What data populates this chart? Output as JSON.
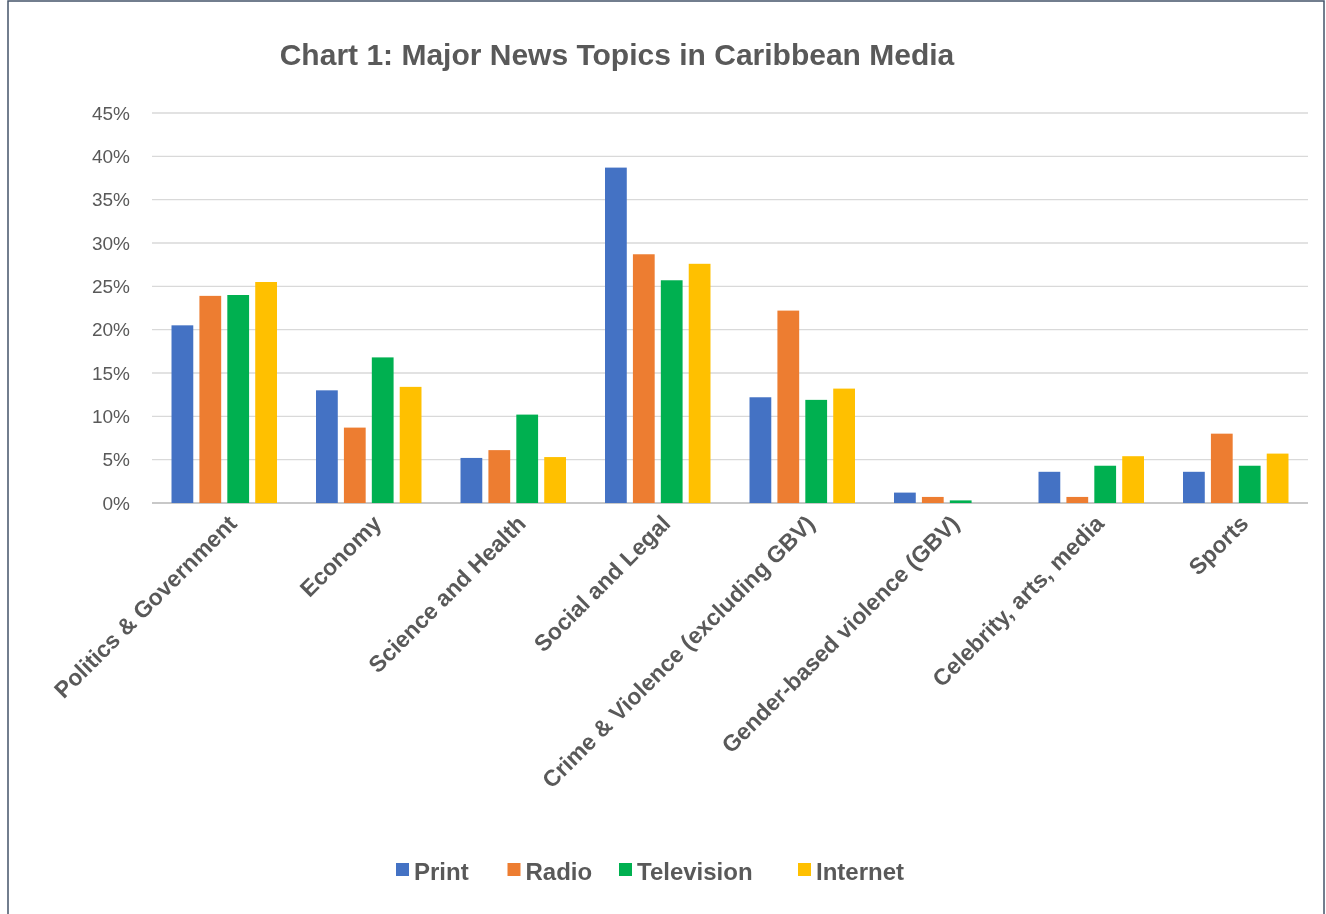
{
  "chart_data": {
    "type": "bar",
    "title": "Chart 1: Major News Topics in Caribbean Media",
    "categories": [
      "Politics & Government",
      "Economy",
      "Science and Health",
      "Social and Legal",
      "Crime & Violence (excluding GBV)",
      "Gender-based violence (GBV)",
      "Celebrity, arts, media",
      "Sports"
    ],
    "series": [
      {
        "name": "Print",
        "color": "#4472c4",
        "values": [
          20.5,
          13.0,
          5.2,
          38.7,
          12.2,
          1.2,
          3.6,
          3.6
        ]
      },
      {
        "name": "Radio",
        "color": "#ed7d31",
        "values": [
          23.9,
          8.7,
          6.1,
          28.7,
          22.2,
          0.7,
          0.7,
          8.0
        ]
      },
      {
        "name": "Television",
        "color": "#00b050",
        "values": [
          24.0,
          16.8,
          10.2,
          25.7,
          11.9,
          0.3,
          4.3,
          4.3
        ]
      },
      {
        "name": "Internet",
        "color": "#ffc000",
        "values": [
          25.5,
          13.4,
          5.3,
          27.6,
          13.2,
          0,
          5.4,
          5.7
        ]
      }
    ],
    "ylim": [
      0,
      45
    ],
    "yticks": [
      {
        "value": 0,
        "label": "0%"
      },
      {
        "value": 5,
        "label": "5%"
      },
      {
        "value": 10,
        "label": "10%"
      },
      {
        "value": 15,
        "label": "15%"
      },
      {
        "value": 20,
        "label": "20%"
      },
      {
        "value": 25,
        "label": "25%"
      },
      {
        "value": 30,
        "label": "30%"
      },
      {
        "value": 35,
        "label": "35%"
      },
      {
        "value": 40,
        "label": "40%"
      },
      {
        "value": 45,
        "label": "45%"
      }
    ],
    "grid": "y",
    "legend": "bottom"
  }
}
